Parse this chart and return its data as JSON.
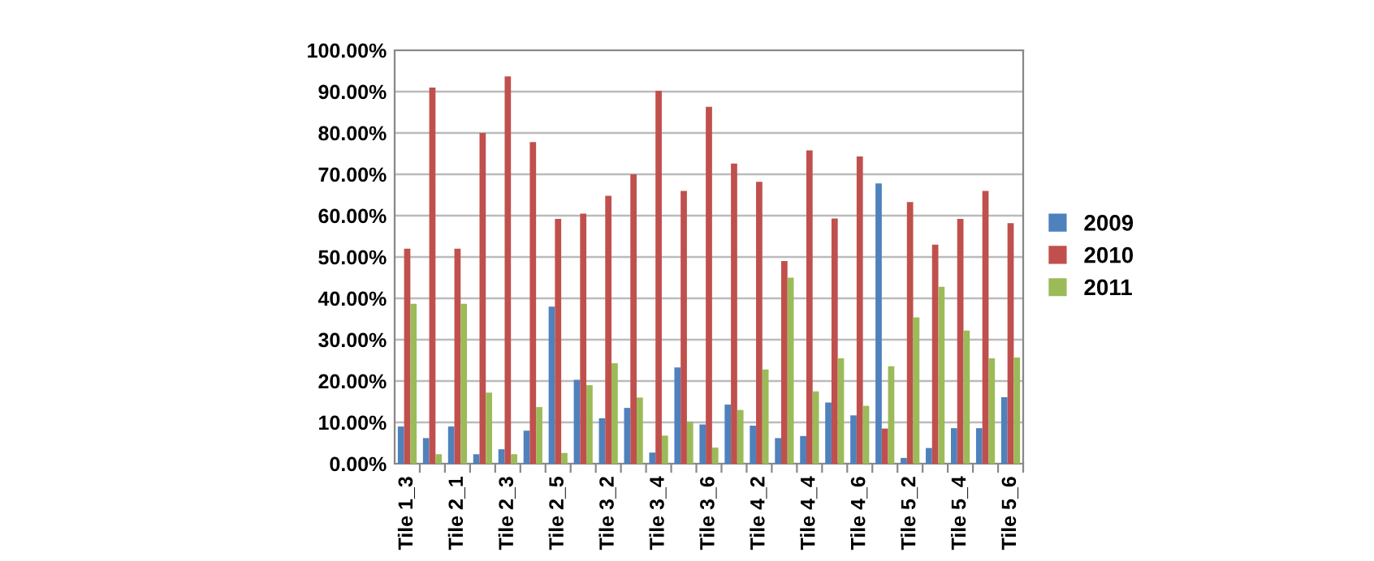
{
  "chart_data": {
    "type": "bar",
    "categories": [
      "Tile 1_3",
      null,
      "Tile 2_1",
      null,
      "Tile 2_3",
      null,
      "Tile 2_5",
      null,
      "Tile 3_2",
      null,
      "Tile 3_4",
      null,
      "Tile 3_6",
      null,
      "Tile 4_2",
      null,
      "Tile 4_4",
      null,
      "Tile 4_6",
      null,
      "Tile 5_2",
      null,
      "Tile 5_4",
      null,
      "Tile 5_6"
    ],
    "series": [
      {
        "name": "2009",
        "color": "#4f81bd",
        "values": [
          9,
          6.2,
          9,
          2.3,
          3.5,
          8,
          38,
          20.3,
          11,
          13.5,
          2.7,
          23.3,
          9.5,
          14.3,
          9.2,
          6.2,
          6.7,
          14.8,
          11.7,
          67.8,
          1.4,
          3.8,
          8.6,
          8.6,
          16.1
        ]
      },
      {
        "name": "2010",
        "color": "#c0504d",
        "values": [
          52,
          91,
          52,
          80,
          93.7,
          77.8,
          59.2,
          60.5,
          64.8,
          70,
          90.2,
          66,
          86.3,
          72.6,
          68.2,
          49,
          75.8,
          59.3,
          74.3,
          8.5,
          63.3,
          53,
          59.2,
          66,
          58.2
        ]
      },
      {
        "name": "2011",
        "color": "#9bbb59",
        "values": [
          38.7,
          2.3,
          38.7,
          17.2,
          2.3,
          13.7,
          2.6,
          19,
          24.3,
          16,
          6.8,
          10.2,
          3.9,
          13,
          22.8,
          45,
          17.5,
          25.5,
          14,
          23.6,
          35.4,
          42.8,
          32.2,
          25.5,
          25.7
        ]
      }
    ],
    "ylim": [
      0,
      100
    ],
    "yticks": [
      {
        "value": 0,
        "label": "0.00%"
      },
      {
        "value": 10,
        "label": "10.00%"
      },
      {
        "value": 20,
        "label": "20.00%"
      },
      {
        "value": 30,
        "label": "30.00%"
      },
      {
        "value": 40,
        "label": "40.00%"
      },
      {
        "value": 50,
        "label": "50.00%"
      },
      {
        "value": 60,
        "label": "60.00%"
      },
      {
        "value": 70,
        "label": "70.00%"
      },
      {
        "value": 80,
        "label": "80.00%"
      },
      {
        "value": 90,
        "label": "90.00%"
      },
      {
        "value": 100,
        "label": "100.00%"
      }
    ],
    "grid": "y",
    "legend": "right"
  }
}
